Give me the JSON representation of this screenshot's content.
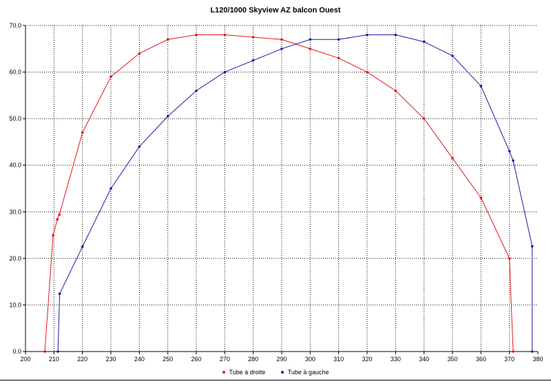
{
  "chart_data": {
    "type": "line",
    "title": "L120/1000 Skyview AZ balcon Ouest",
    "xlabel": "",
    "ylabel": "",
    "xlim": [
      200,
      380
    ],
    "ylim": [
      0,
      70
    ],
    "xticks": [
      "200",
      "210",
      "220",
      "230",
      "240",
      "250",
      "260",
      "270",
      "280",
      "290",
      "300",
      "310",
      "320",
      "330",
      "340",
      "350",
      "360",
      "370",
      "380"
    ],
    "yticks": [
      "0.0",
      "10.0",
      "20.0",
      "30.0",
      "40.0",
      "50.0",
      "60.0",
      "70.0"
    ],
    "xtick_values": [
      200,
      210,
      220,
      230,
      240,
      250,
      260,
      270,
      280,
      290,
      300,
      310,
      320,
      330,
      340,
      350,
      360,
      370,
      380
    ],
    "ytick_values": [
      0,
      10,
      20,
      30,
      40,
      50,
      60,
      70
    ],
    "grid": true,
    "legend_position": "bottom",
    "series": [
      {
        "name": "Tube à droite",
        "color": "#e8141c",
        "x": [
          206.8,
          209.7,
          211.2,
          211.9,
          220,
          230,
          240,
          250,
          260,
          270,
          280,
          290,
          300,
          310,
          320,
          330,
          340,
          350,
          360,
          370,
          371.3
        ],
        "y": [
          0,
          25,
          28.4,
          29.4,
          47,
          59,
          64,
          67,
          68,
          68,
          67.5,
          67,
          65,
          63,
          60,
          56,
          50,
          41.5,
          33,
          20,
          0
        ]
      },
      {
        "name": "Tube à gauche",
        "color": "#1a1aa8",
        "x": [
          211.4,
          212,
          220,
          230,
          240,
          250,
          260,
          270,
          280,
          290,
          300,
          310,
          320,
          330,
          340,
          350,
          360,
          370,
          371.3,
          378,
          378
        ],
        "y": [
          0,
          12.4,
          22.5,
          35,
          44,
          50.5,
          56,
          60,
          62.5,
          65,
          67,
          67,
          68,
          68,
          66.5,
          63.5,
          57,
          43,
          41,
          22.6,
          0
        ]
      }
    ]
  }
}
